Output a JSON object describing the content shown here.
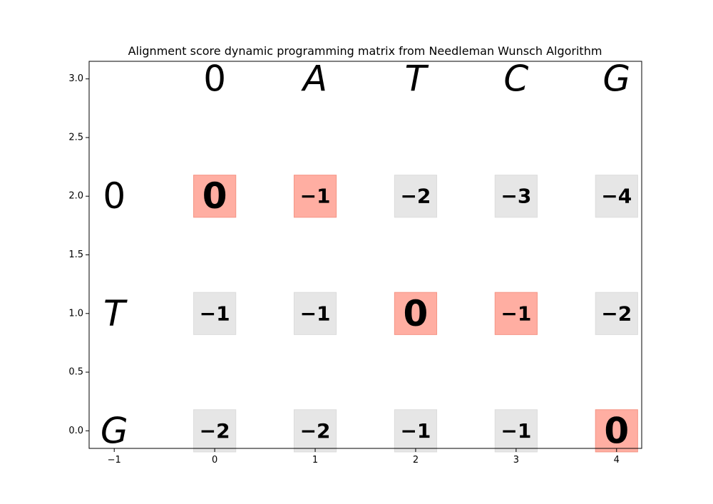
{
  "chart_data": {
    "type": "heatmap",
    "title": "Alignment score dynamic programming matrix from Needleman Wunsch Algorithm",
    "xlabel": "",
    "ylabel": "",
    "xlim": [
      -1.25,
      4.25
    ],
    "ylim": [
      -0.15,
      3.15
    ],
    "x_ticks": [
      -1,
      0,
      1,
      2,
      3,
      4
    ],
    "x_tick_labels": [
      "−1",
      "0",
      "1",
      "2",
      "3",
      "4"
    ],
    "y_ticks": [
      0.0,
      0.5,
      1.0,
      1.5,
      2.0,
      2.5,
      3.0
    ],
    "y_tick_labels": [
      "0.0",
      "0.5",
      "1.0",
      "1.5",
      "2.0",
      "2.5",
      "3.0"
    ],
    "grid": false,
    "column_sequence": [
      "0",
      "A",
      "T",
      "C",
      "G"
    ],
    "row_sequence": [
      "0",
      "T",
      "G"
    ],
    "row_y": [
      2,
      1,
      0
    ],
    "scores": [
      [
        "0",
        "−1",
        "−2",
        "−3",
        "−4"
      ],
      [
        "−1",
        "−1",
        "0",
        "−1",
        "−2"
      ],
      [
        "−2",
        "−2",
        "−1",
        "−1",
        "0"
      ]
    ],
    "path": [
      [
        true,
        true,
        false,
        false,
        false
      ],
      [
        false,
        false,
        true,
        true,
        false
      ],
      [
        false,
        false,
        false,
        false,
        true
      ]
    ],
    "colors": {
      "path_fill": "#ffaea2",
      "path_edge": "#f59585",
      "default_fill": "#e6e6e6",
      "default_edge": "#dcdcdc"
    }
  }
}
